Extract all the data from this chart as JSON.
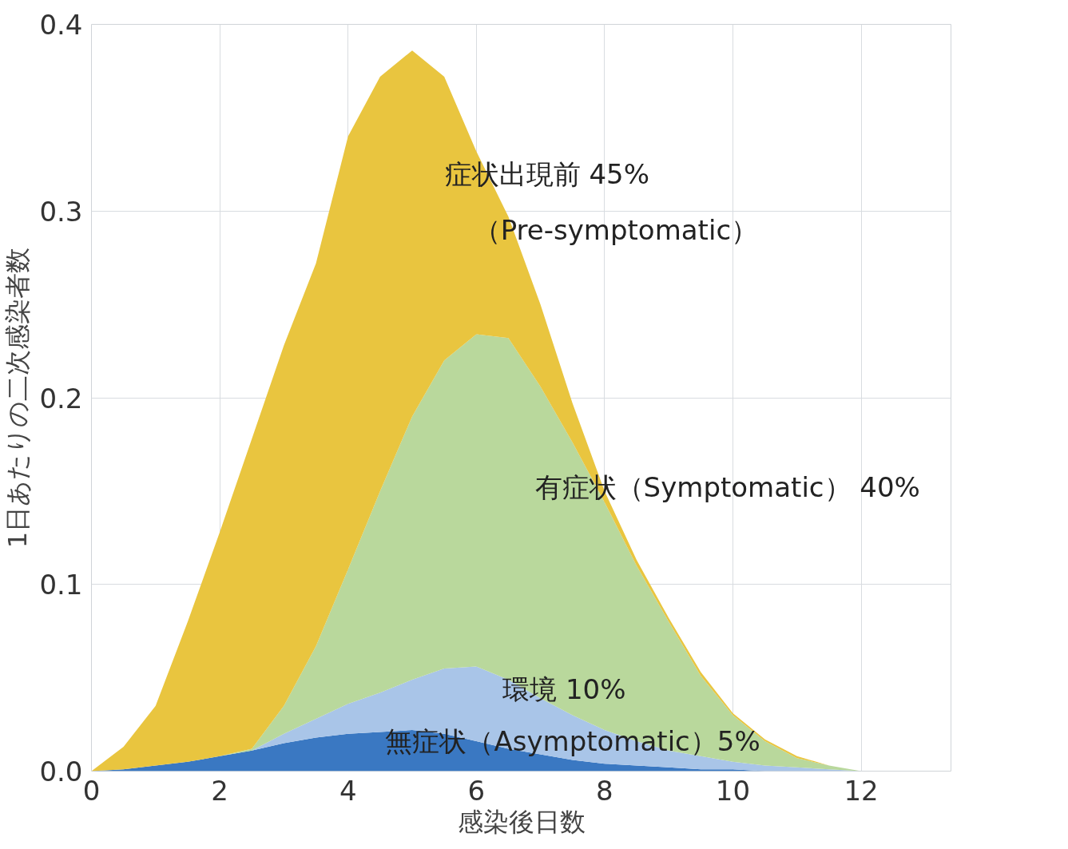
{
  "chart_data": {
    "type": "area",
    "stacked": true,
    "xlabel": "感染後日数",
    "ylabel": "1日あたりの二次感染者数",
    "x": [
      0,
      0.5,
      1,
      1.5,
      2,
      2.5,
      3,
      3.5,
      4,
      4.5,
      5,
      5.5,
      6,
      6.5,
      7,
      7.5,
      8,
      8.5,
      9,
      9.5,
      10,
      10.5,
      11,
      11.5,
      12
    ],
    "series": [
      {
        "color": "#3a78c2",
        "values": [
          0,
          0.001,
          0.003,
          0.005,
          0.008,
          0.011,
          0.015,
          0.018,
          0.02,
          0.021,
          0.022,
          0.02,
          0.016,
          0.012,
          0.009,
          0.006,
          0.004,
          0.003,
          0.002,
          0.001,
          0.001,
          0,
          0,
          0,
          0
        ]
      },
      {
        "color": "#a9c5e8",
        "values": [
          0,
          0,
          0,
          0,
          0,
          0,
          0.005,
          0.01,
          0.016,
          0.021,
          0.027,
          0.035,
          0.04,
          0.037,
          0.03,
          0.024,
          0.018,
          0.013,
          0.009,
          0.007,
          0.004,
          0.003,
          0.002,
          0.001,
          0
        ]
      },
      {
        "color": "#b9d89c",
        "values": [
          0,
          0,
          0,
          0,
          0,
          0.001,
          0.015,
          0.039,
          0.072,
          0.108,
          0.141,
          0.165,
          0.178,
          0.183,
          0.167,
          0.146,
          0.122,
          0.094,
          0.069,
          0.043,
          0.025,
          0.013,
          0.005,
          0.002,
          0
        ]
      },
      {
        "color": "#e9c53f",
        "values": [
          0,
          0.012,
          0.032,
          0.075,
          0.12,
          0.166,
          0.193,
          0.205,
          0.232,
          0.222,
          0.196,
          0.152,
          0.098,
          0.065,
          0.044,
          0.021,
          0.006,
          0.003,
          0.002,
          0.002,
          0.001,
          0.001,
          0.001,
          0,
          0
        ]
      }
    ],
    "xlim": [
      0,
      13.4
    ],
    "ylim": [
      0,
      0.4
    ],
    "xticks": [
      0,
      2,
      4,
      6,
      8,
      10,
      12
    ],
    "yticks": [
      {
        "value": 0,
        "label": "0.0"
      },
      0.1,
      0.2,
      0.3,
      0.4
    ],
    "grid": true,
    "annotations": [
      "症状出現前 45%",
      "（Pre-symptomatic）",
      "有症状（Symptomatic） 40%",
      "環境 10%",
      "無症状（Asymptomatic）5%"
    ]
  }
}
